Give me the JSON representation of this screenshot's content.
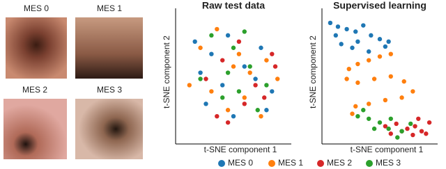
{
  "images": [
    {
      "label": "MES 0"
    },
    {
      "label": "MES 1"
    },
    {
      "label": "MES 2"
    },
    {
      "label": "MES 3"
    }
  ],
  "legend": [
    {
      "name": "MES 0",
      "color": "#1f77b4"
    },
    {
      "name": "MES 1",
      "color": "#ff7f0e"
    },
    {
      "name": "MES 2",
      "color": "#d62728"
    },
    {
      "name": "MES 3",
      "color": "#2ca02c"
    }
  ],
  "chart_data": [
    {
      "type": "scatter",
      "title": "Raw test data",
      "x_label": "t-SNE component 1",
      "y_label": "t-SNE component 2",
      "xlim": [
        0,
        100
      ],
      "ylim": [
        0,
        100
      ],
      "series": [
        {
          "x": [
            15,
            30,
            45,
            60,
            75,
            85,
            25,
            50,
            70,
            40,
            20,
            80
          ],
          "y": [
            80,
            70,
            85,
            60,
            75,
            40,
            30,
            20,
            50,
            45,
            55,
            25
          ]
        },
        {
          "x": [
            20,
            35,
            55,
            65,
            80,
            90,
            30,
            45,
            60,
            75,
            50,
            10
          ],
          "y": [
            75,
            90,
            70,
            55,
            65,
            50,
            40,
            25,
            35,
            20,
            60,
            45
          ]
        },
        {
          "x": [
            40,
            55,
            70,
            85,
            25,
            60,
            45,
            78,
            88,
            35
          ],
          "y": [
            65,
            80,
            45,
            70,
            50,
            30,
            15,
            35,
            60,
            20
          ]
        },
        {
          "x": [
            30,
            50,
            65,
            80,
            40,
            20,
            55,
            72,
            60,
            45
          ],
          "y": [
            85,
            75,
            60,
            45,
            35,
            50,
            40,
            25,
            88,
            55
          ]
        }
      ]
    },
    {
      "type": "scatter",
      "title": "Supervised learning",
      "x_label": "t-SNE component 1",
      "y_label": "t-SNE component 2",
      "xlim": [
        0,
        100
      ],
      "ylim": [
        0,
        100
      ],
      "series": [
        {
          "x": [
            5,
            12,
            20,
            28,
            35,
            42,
            50,
            58,
            15,
            25,
            40,
            55,
            10,
            30
          ],
          "y": [
            95,
            92,
            90,
            88,
            93,
            85,
            82,
            80,
            78,
            75,
            72,
            76,
            85,
            80
          ]
        },
        {
          "x": [
            60,
            50,
            40,
            30,
            22,
            20,
            30,
            45,
            60,
            72,
            80,
            70,
            55,
            40,
            28,
            25
          ],
          "y": [
            70,
            68,
            65,
            62,
            58,
            50,
            47,
            50,
            52,
            48,
            40,
            35,
            33,
            30,
            28,
            22
          ]
        },
        {
          "x": [
            55,
            65,
            75,
            82,
            88,
            92,
            80,
            70,
            60,
            95,
            85
          ],
          "y": [
            12,
            14,
            10,
            12,
            8,
            6,
            5,
            8,
            6,
            15,
            18
          ]
        },
        {
          "x": [
            30,
            40,
            50,
            45,
            60,
            70,
            35,
            58,
            66,
            78
          ],
          "y": [
            20,
            18,
            15,
            10,
            18,
            8,
            25,
            10,
            3,
            14
          ]
        }
      ]
    }
  ]
}
